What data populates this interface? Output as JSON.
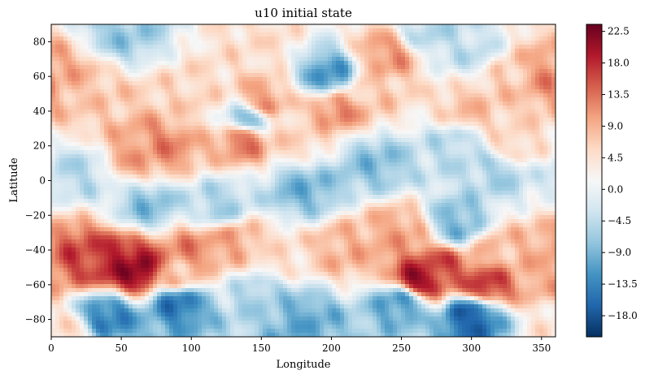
{
  "chart_data": {
    "type": "heatmap",
    "title": "u10 initial state",
    "xlabel": "Longitude",
    "ylabel": "Latitude",
    "xlim": [
      0,
      360
    ],
    "ylim": [
      -90,
      90
    ],
    "x_ticks": [
      {
        "value": 0,
        "label": "0"
      },
      {
        "value": 50,
        "label": "50"
      },
      {
        "value": 100,
        "label": "100"
      },
      {
        "value": 150,
        "label": "150"
      },
      {
        "value": 200,
        "label": "200"
      },
      {
        "value": 250,
        "label": "250"
      },
      {
        "value": 300,
        "label": "300"
      },
      {
        "value": 350,
        "label": "350"
      }
    ],
    "y_ticks": [
      {
        "value": -80,
        "label": "−80"
      },
      {
        "value": -60,
        "label": "−60"
      },
      {
        "value": -40,
        "label": "−40"
      },
      {
        "value": -20,
        "label": "−20"
      },
      {
        "value": 0,
        "label": "0"
      },
      {
        "value": 20,
        "label": "20"
      },
      {
        "value": 40,
        "label": "40"
      },
      {
        "value": 60,
        "label": "60"
      },
      {
        "value": 80,
        "label": "80"
      }
    ],
    "colormap": "RdBu_r",
    "colorbar": {
      "vmin": -21,
      "vmax": 23.5,
      "ticks": [
        {
          "value": 22.5,
          "label": "22.5"
        },
        {
          "value": 18.0,
          "label": "18.0"
        },
        {
          "value": 13.5,
          "label": "13.5"
        },
        {
          "value": 9.0,
          "label": "9.0"
        },
        {
          "value": 4.5,
          "label": "4.5"
        },
        {
          "value": 0.0,
          "label": "0.0"
        },
        {
          "value": -4.5,
          "label": "−4.5"
        },
        {
          "value": -9.0,
          "label": "−9.0"
        },
        {
          "value": -13.5,
          "label": "−13.5"
        },
        {
          "value": -18.0,
          "label": "−18.0"
        }
      ],
      "stops": [
        "#053061",
        "#2166ac",
        "#4393c3",
        "#92c5de",
        "#d1e5f0",
        "#f7f7f7",
        "#fddbc7",
        "#f4a582",
        "#d6604d",
        "#b2182b",
        "#67001f"
      ]
    },
    "grid": false,
    "legend": "none",
    "regions": [
      {
        "lon": 50,
        "lat": -48,
        "value": 19
      },
      {
        "lon": 62,
        "lat": -52,
        "value": 22
      },
      {
        "lon": 20,
        "lat": -45,
        "value": 16
      },
      {
        "lon": 100,
        "lat": -40,
        "value": 12
      },
      {
        "lon": 90,
        "lat": -55,
        "value": 8
      },
      {
        "lon": 130,
        "lat": -35,
        "value": 10
      },
      {
        "lon": 160,
        "lat": -45,
        "value": 5
      },
      {
        "lon": 210,
        "lat": -40,
        "value": 9
      },
      {
        "lon": 250,
        "lat": -30,
        "value": 10
      },
      {
        "lon": 262,
        "lat": -58,
        "value": 21
      },
      {
        "lon": 275,
        "lat": -50,
        "value": 16
      },
      {
        "lon": 310,
        "lat": -60,
        "value": 17
      },
      {
        "lon": 320,
        "lat": -40,
        "value": 8
      },
      {
        "lon": 345,
        "lat": -48,
        "value": 9
      },
      {
        "lon": 40,
        "lat": -78,
        "value": -14
      },
      {
        "lon": 90,
        "lat": -70,
        "value": -15
      },
      {
        "lon": 180,
        "lat": -80,
        "value": -10
      },
      {
        "lon": 300,
        "lat": -78,
        "value": -17
      },
      {
        "lon": 250,
        "lat": -70,
        "value": -12
      },
      {
        "lon": 10,
        "lat": -88,
        "value": 5
      },
      {
        "lon": 150,
        "lat": -65,
        "value": -6
      },
      {
        "lon": 70,
        "lat": -15,
        "value": -8
      },
      {
        "lon": 120,
        "lat": -15,
        "value": -6
      },
      {
        "lon": 180,
        "lat": -5,
        "value": -9
      },
      {
        "lon": 230,
        "lat": 10,
        "value": -8
      },
      {
        "lon": 290,
        "lat": -25,
        "value": -9
      },
      {
        "lon": 320,
        "lat": 5,
        "value": -6
      },
      {
        "lon": 20,
        "lat": 5,
        "value": -5
      },
      {
        "lon": 60,
        "lat": 15,
        "value": 10
      },
      {
        "lon": 80,
        "lat": 20,
        "value": 12
      },
      {
        "lon": 138,
        "lat": 25,
        "value": 14
      },
      {
        "lon": 175,
        "lat": 25,
        "value": 6
      },
      {
        "lon": 290,
        "lat": 20,
        "value": -5
      },
      {
        "lon": 330,
        "lat": 20,
        "value": 6
      },
      {
        "lon": 10,
        "lat": 60,
        "value": 9
      },
      {
        "lon": 30,
        "lat": 45,
        "value": 7
      },
      {
        "lon": 100,
        "lat": 45,
        "value": 6
      },
      {
        "lon": 150,
        "lat": 45,
        "value": 11
      },
      {
        "lon": 200,
        "lat": 60,
        "value": -12
      },
      {
        "lon": 205,
        "lat": 42,
        "value": 12
      },
      {
        "lon": 225,
        "lat": 50,
        "value": 7
      },
      {
        "lon": 240,
        "lat": 72,
        "value": 11
      },
      {
        "lon": 300,
        "lat": 40,
        "value": 8
      },
      {
        "lon": 330,
        "lat": 60,
        "value": 7
      },
      {
        "lon": 355,
        "lat": 60,
        "value": 12
      },
      {
        "lon": 50,
        "lat": 85,
        "value": -7
      },
      {
        "lon": 150,
        "lat": 80,
        "value": 5
      },
      {
        "lon": 270,
        "lat": 85,
        "value": -5
      },
      {
        "lon": 140,
        "lat": 35,
        "value": -10
      },
      {
        "lon": 300,
        "lat": 75,
        "value": -4
      }
    ]
  }
}
